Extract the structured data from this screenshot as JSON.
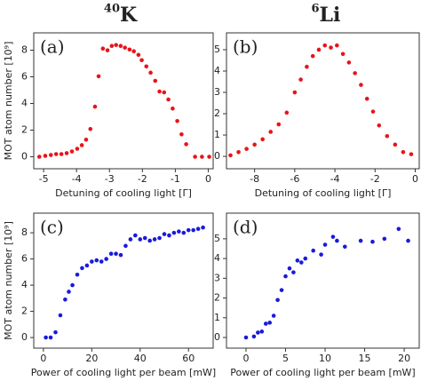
{
  "chart_data": [
    {
      "type": "scatter",
      "title_sup": "40",
      "title": "K",
      "label": "(a)",
      "ylabel": "MOT atom number [10⁹]",
      "xlabel": "Detuning of cooling light [Γ]",
      "color": "#e8141b",
      "x": [
        -5.13,
        -4.95,
        -4.78,
        -4.62,
        -4.46,
        -4.3,
        -4.14,
        -3.98,
        -3.84,
        -3.71,
        -3.58,
        -3.44,
        -3.33,
        -3.2,
        -3.06,
        -2.93,
        -2.8,
        -2.66,
        -2.53,
        -2.39,
        -2.26,
        -2.12,
        -2.02,
        -1.88,
        -1.75,
        -1.61,
        -1.48,
        -1.34,
        -1.21,
        -1.08,
        -0.94,
        -0.81,
        -0.67,
        -0.4,
        -0.19,
        0.03
      ],
      "values": [
        0,
        0.07,
        0.13,
        0.2,
        0.2,
        0.27,
        0.4,
        0.6,
        0.87,
        1.28,
        2.08,
        3.76,
        6.04,
        8.12,
        7.99,
        8.32,
        8.39,
        8.32,
        8.19,
        8.05,
        7.92,
        7.65,
        7.25,
        6.78,
        6.31,
        5.7,
        4.9,
        4.83,
        4.3,
        3.62,
        2.68,
        1.68,
        0.94,
        0,
        0,
        0
      ],
      "xlim": [
        -5.3,
        0.15
      ],
      "ylim": [
        -0.9,
        9.3
      ],
      "xticks": [
        -5,
        -4,
        -3,
        -2,
        -1,
        0
      ],
      "yticks": [
        0,
        2,
        4,
        6,
        8
      ]
    },
    {
      "type": "scatter",
      "title_sup": "6",
      "title": "Li",
      "label": "(b)",
      "xlabel": "Detuning of cooling light [Γ]",
      "color": "#e8141b",
      "x": [
        -9.2,
        -8.8,
        -8.4,
        -8.0,
        -7.6,
        -7.2,
        -6.8,
        -6.4,
        -6.0,
        -5.7,
        -5.4,
        -5.1,
        -4.8,
        -4.5,
        -4.2,
        -3.9,
        -3.6,
        -3.3,
        -3.0,
        -2.7,
        -2.4,
        -2.1,
        -1.8,
        -1.4,
        -1.0,
        -0.6,
        -0.2
      ],
      "values": [
        0.05,
        0.2,
        0.35,
        0.55,
        0.8,
        1.15,
        1.5,
        2.05,
        3.0,
        3.6,
        4.2,
        4.7,
        5.0,
        5.2,
        5.1,
        5.2,
        4.8,
        4.4,
        3.9,
        3.35,
        2.7,
        2.1,
        1.45,
        0.95,
        0.55,
        0.2,
        0.1
      ],
      "xlim": [
        -9.4,
        0.2
      ],
      "ylim": [
        -0.58,
        5.79
      ],
      "xticks": [
        -8,
        -6,
        -4,
        -2,
        0
      ],
      "yticks": [
        0,
        1,
        2,
        3,
        4,
        5
      ]
    },
    {
      "type": "scatter",
      "label": "(c)",
      "ylabel": "MOT atom number [10⁹]",
      "xlabel": "Power of cooling light per beam [mW]",
      "color": "#1a1adc",
      "x": [
        1,
        3,
        5,
        7,
        9,
        10.5,
        12,
        14,
        16,
        18,
        20,
        22,
        24,
        26,
        28,
        30,
        32,
        34,
        36,
        38,
        40,
        42,
        44,
        46,
        48,
        50,
        52,
        54,
        56,
        58,
        60,
        62,
        64,
        66
      ],
      "values": [
        0,
        0,
        0.4,
        1.7,
        2.9,
        3.5,
        4.0,
        4.8,
        5.3,
        5.5,
        5.8,
        5.9,
        5.8,
        6.0,
        6.4,
        6.4,
        6.3,
        7.0,
        7.5,
        7.8,
        7.5,
        7.6,
        7.4,
        7.5,
        7.6,
        7.9,
        7.8,
        8.0,
        8.1,
        8.0,
        8.2,
        8.2,
        8.3,
        8.4
      ],
      "xlim": [
        -4,
        70.2
      ],
      "ylim": [
        -0.81,
        9.5
      ],
      "xticks": [
        0,
        20,
        40,
        60
      ],
      "yticks": [
        0,
        2,
        4,
        6,
        8
      ]
    },
    {
      "type": "scatter",
      "label": "(d)",
      "xlabel": "Power of cooling light per beam [mW]",
      "color": "#1a1adc",
      "x": [
        0,
        1,
        1.5,
        2,
        2.5,
        3,
        3.5,
        4,
        4.5,
        5,
        5.5,
        6,
        6.5,
        7,
        7.5,
        8.5,
        9.5,
        10,
        11,
        11.5,
        12.5,
        14.5,
        16,
        17.5,
        19.3,
        20.5
      ],
      "values": [
        0,
        0.05,
        0.25,
        0.3,
        0.7,
        0.75,
        1.1,
        1.9,
        2.4,
        3.1,
        3.5,
        3.3,
        3.9,
        3.8,
        4.0,
        4.4,
        4.2,
        4.7,
        5.1,
        4.9,
        4.6,
        4.9,
        4.85,
        5.0,
        5.5,
        4.9
      ],
      "xlim": [
        -2.47,
        21.9
      ],
      "ylim": [
        -0.54,
        6.3
      ],
      "xticks": [
        0,
        5,
        10,
        15,
        20
      ],
      "yticks": [
        0,
        1,
        2,
        3,
        4,
        5
      ]
    }
  ]
}
